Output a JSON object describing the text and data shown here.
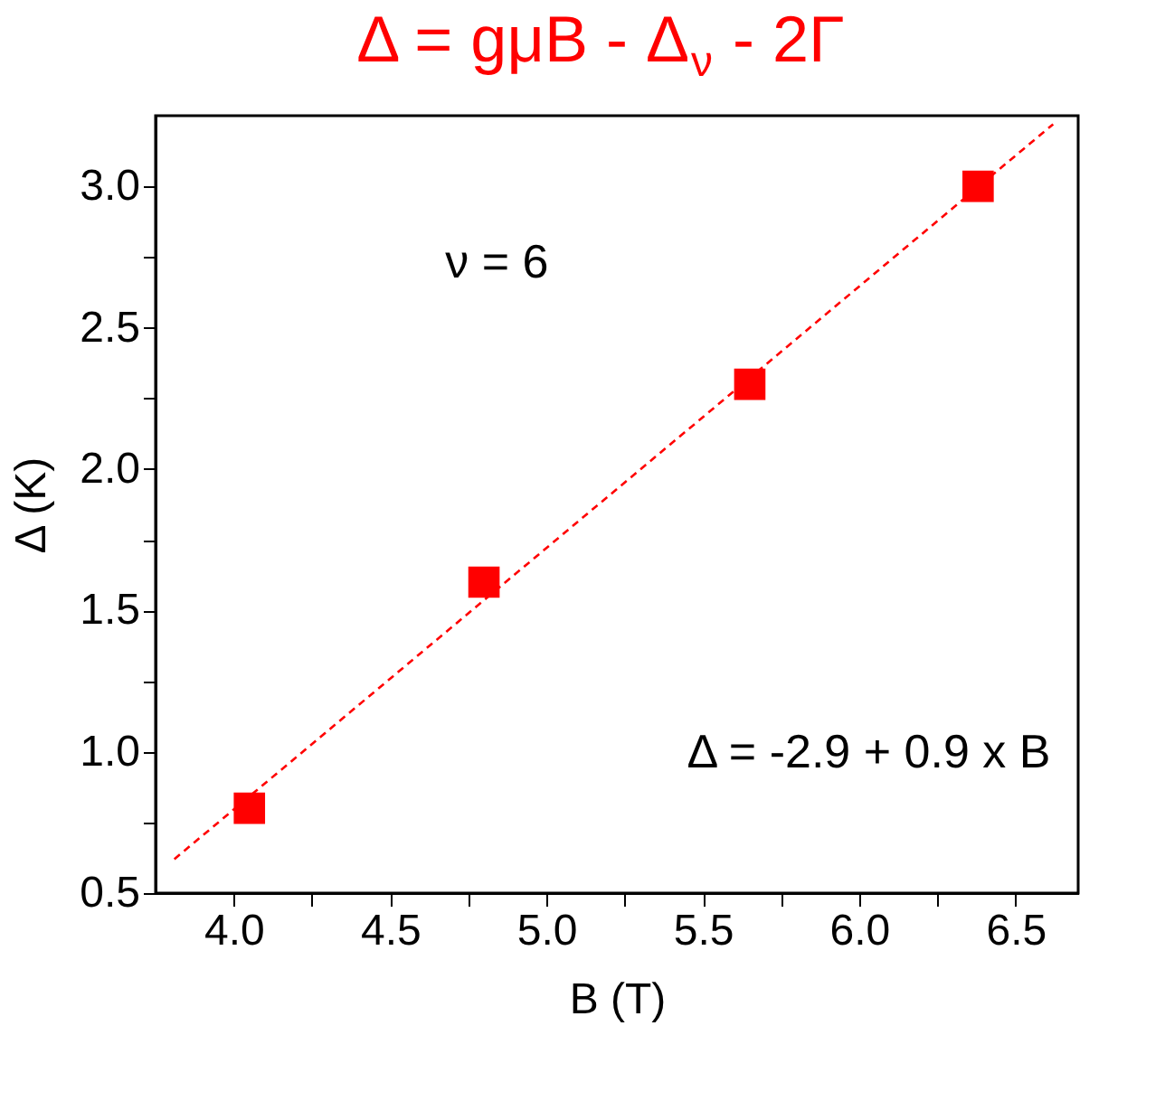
{
  "chart_data": {
    "type": "scatter",
    "title": "Δ = gμB - Δ$_{ν}$ - 2Γ",
    "xlabel": "B (T)",
    "ylabel": "Δ (K)",
    "series": [
      {
        "color": "#ff0000",
        "marker": "square",
        "x": [
          4.05,
          4.8,
          5.65,
          6.38
        ],
        "values": [
          0.8,
          1.6,
          2.3,
          3.0
        ]
      },
      {
        "type": "line",
        "color": "#ff0000",
        "line_style": "dashed",
        "marker": "none",
        "x": [
          3.81,
          6.62
        ],
        "values": [
          0.62,
          3.22
        ]
      }
    ],
    "xlim": [
      3.75,
      6.7
    ],
    "xticks": [
      {
        "value": 4.0,
        "label": "4.0"
      },
      {
        "value": 4.25,
        "label": null
      },
      4.5,
      {
        "value": 4.75,
        "label": null
      },
      {
        "value": 5.0,
        "label": "5.0"
      },
      {
        "value": 5.25,
        "label": null
      },
      5.5,
      {
        "value": 5.75,
        "label": null
      },
      {
        "value": 6.0,
        "label": "6.0"
      },
      {
        "value": 6.25,
        "label": null
      },
      6.5
    ],
    "ylim": [
      0.5,
      3.25
    ],
    "yticks": [
      0.5,
      {
        "value": 0.75,
        "label": null
      },
      {
        "value": 1.0,
        "label": "1.0"
      },
      {
        "value": 1.25,
        "label": null
      },
      1.5,
      {
        "value": 1.75,
        "label": null
      },
      {
        "value": 2.0,
        "label": "2.0"
      },
      {
        "value": 2.25,
        "label": null
      },
      2.5,
      {
        "value": 2.75,
        "label": null
      },
      {
        "value": 3.0,
        "label": "3.0"
      }
    ],
    "annotations": [
      "ν = 6",
      "Δ = -2.9 + 0.9 x B"
    ],
    "grid": false
  }
}
